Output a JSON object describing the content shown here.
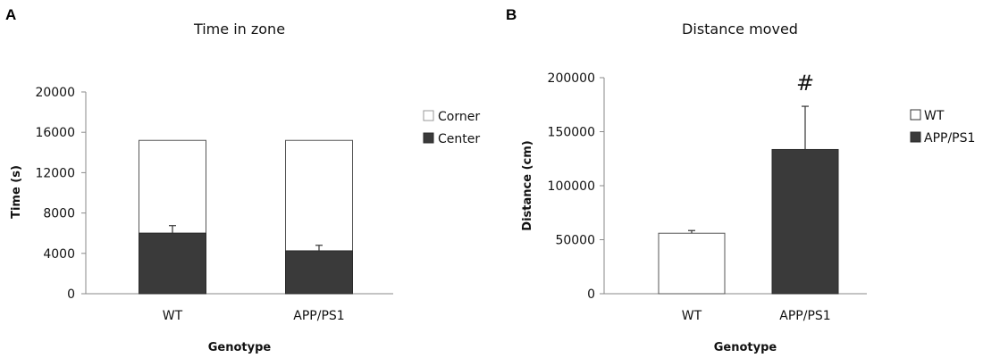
{
  "chart_data": [
    {
      "panel": "A",
      "type": "bar",
      "stacked": true,
      "title": "Time in zone",
      "xlabel": "Genotype",
      "ylabel": "Time (s)",
      "categories": [
        "WT",
        "APP/PS1"
      ],
      "yticks": [
        "0",
        "4000",
        "8000",
        "12000",
        "16000",
        "20000"
      ],
      "ylim": [
        0,
        20000
      ],
      "series": [
        {
          "name": "Center",
          "values": [
            6000,
            4250
          ],
          "errors": [
            750,
            550
          ],
          "color": "#3a3a3a"
        },
        {
          "name": "Corner",
          "values": [
            9200,
            10950
          ],
          "color": "#ffffff"
        }
      ],
      "legend": {
        "position": "right",
        "items": [
          "Corner",
          "Center"
        ]
      }
    },
    {
      "panel": "B",
      "type": "bar",
      "title": "Distance moved",
      "xlabel": "Genotype",
      "ylabel": "Distance (cm)",
      "categories": [
        "WT",
        "APP/PS1"
      ],
      "yticks": [
        "0",
        "50000",
        "100000",
        "150000",
        "200000"
      ],
      "ylim": [
        0,
        200000
      ],
      "values": [
        56000,
        133500
      ],
      "errors": [
        2500,
        40000
      ],
      "colors": [
        "#ffffff",
        "#3a3a3a"
      ],
      "annotation": "#",
      "legend": {
        "position": "right",
        "items": [
          "WT",
          "APP/PS1"
        ]
      }
    }
  ]
}
